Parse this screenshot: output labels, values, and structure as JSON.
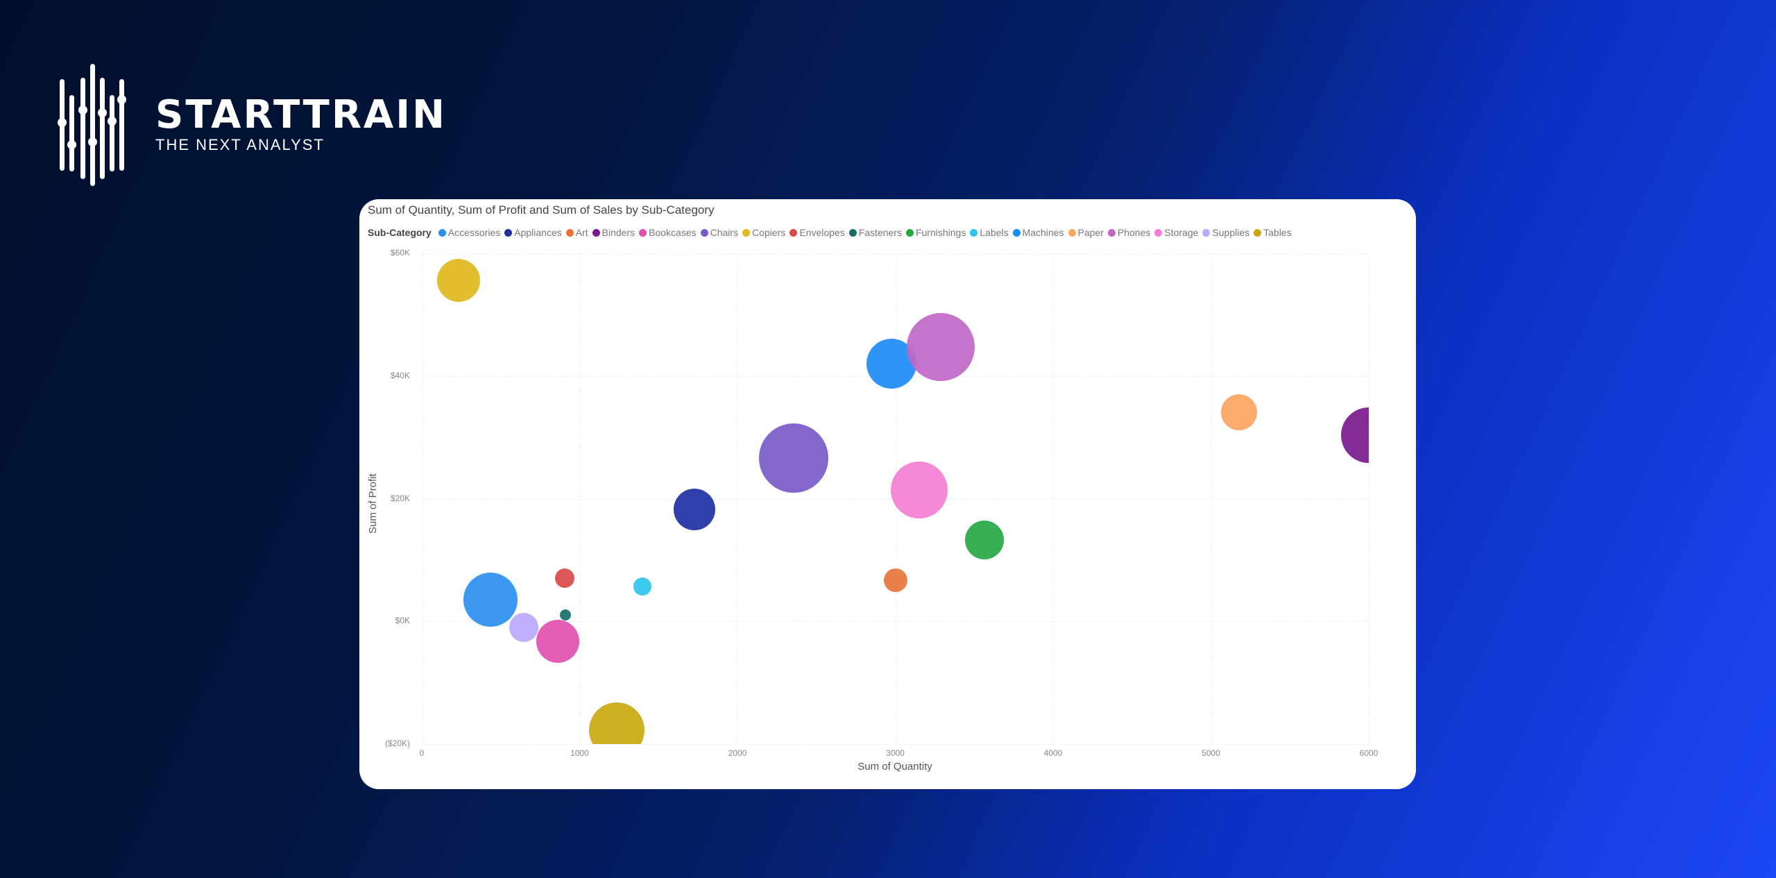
{
  "brand": {
    "name": "STARTTRAIN",
    "tagline": "THE NEXT ANALYST"
  },
  "chart_data": {
    "type": "scatter",
    "title": "Sum of Quantity, Sum of Profit and Sum of Sales by Sub-Category",
    "xlabel": "Sum of Quantity",
    "ylabel": "Sum of Profit",
    "size_label": "Sum of Sales",
    "legend_title": "Sub-Category",
    "legend_position": "top",
    "grid": true,
    "xlim": [
      0,
      6000
    ],
    "ylim": [
      -20000,
      60000
    ],
    "x_ticks": [
      "0",
      "1000",
      "2000",
      "3000",
      "4000",
      "5000",
      "6000"
    ],
    "y_ticks": [
      "$60K",
      "$40K",
      "$20K",
      "$0K",
      "($20K)"
    ],
    "series": [
      {
        "name": "Accessories",
        "color": "#2b8ff0",
        "x": 435,
        "y": 3500,
        "r": 39
      },
      {
        "name": "Appliances",
        "color": "#1f2fa3",
        "x": 1727,
        "y": 18300,
        "r": 30
      },
      {
        "name": "Art",
        "color": "#e8743b",
        "x": 3002,
        "y": 6700,
        "r": 17
      },
      {
        "name": "Binders",
        "color": "#7a1a8c",
        "x": 5999,
        "y": 30300,
        "r": 40
      },
      {
        "name": "Bookcases",
        "color": "#e04fb0",
        "x": 862,
        "y": -3300,
        "r": 31
      },
      {
        "name": "Chairs",
        "color": "#7a5ac8",
        "x": 2356,
        "y": 26600,
        "r": 50
      },
      {
        "name": "Copiers",
        "color": "#dfb81c",
        "x": 233,
        "y": 55600,
        "r": 31
      },
      {
        "name": "Envelopes",
        "color": "#d94a4a",
        "x": 905,
        "y": 7000,
        "r": 14
      },
      {
        "name": "Fasteners",
        "color": "#1a6e6a",
        "x": 910,
        "y": 1100,
        "r": 8
      },
      {
        "name": "Furnishings",
        "color": "#27a843",
        "x": 3563,
        "y": 13300,
        "r": 28
      },
      {
        "name": "Labels",
        "color": "#2ec4ee",
        "x": 1398,
        "y": 5700,
        "r": 13
      },
      {
        "name": "Machines",
        "color": "#1c8cf5",
        "x": 2976,
        "y": 42000,
        "r": 36
      },
      {
        "name": "Paper",
        "color": "#fba45f",
        "x": 5178,
        "y": 34100,
        "r": 26
      },
      {
        "name": "Phones",
        "color": "#c068c8",
        "x": 3289,
        "y": 44700,
        "r": 49
      },
      {
        "name": "Storage",
        "color": "#f47fd4",
        "x": 3152,
        "y": 21400,
        "r": 41
      },
      {
        "name": "Supplies",
        "color": "#bba9fb",
        "x": 646,
        "y": -1000,
        "r": 21
      },
      {
        "name": "Tables",
        "color": "#c9a80e",
        "x": 1235,
        "y": -17700,
        "r": 40
      }
    ]
  }
}
